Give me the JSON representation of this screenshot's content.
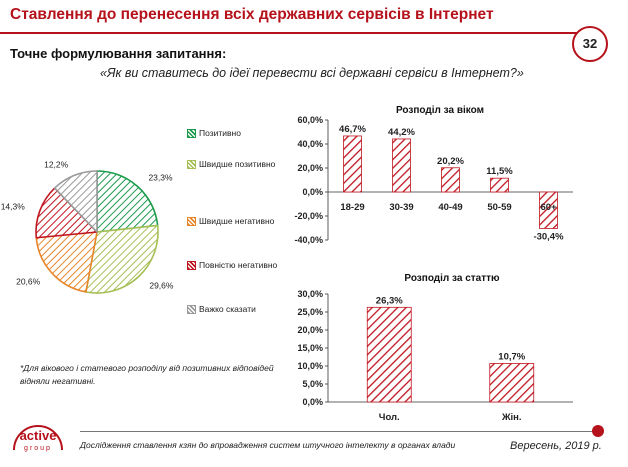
{
  "header": {
    "title": "Ставлення до перенесення всіх державних сервісів в Інтернет",
    "page_number": "32"
  },
  "question": {
    "label": "Точне формулювання запитання:",
    "text": "«Як ви ставитесь до ідеї перевести всі державні сервіси в Інтернет?»"
  },
  "note": "*Для вікового і статевого розподілу від позитивних відповідей відняли негативні.",
  "footer": {
    "text": "Дослідження ставлення  кзян до впровадження систем штучного інтелекту в органах влади",
    "date": "Вересень, 2019 р.",
    "logo_top": "active",
    "logo_bottom": "group"
  },
  "colors": {
    "accent": "#b5121b",
    "pie_positive": "#1a9b4b",
    "pie_rather_positive": "#a6bf55",
    "pie_rather_negative": "#e8862a",
    "pie_negative": "#c0161f",
    "pie_hard_to_say": "#9a9a9a",
    "bar": "#c0161f"
  },
  "chart_data": [
    {
      "type": "pie",
      "categories": [
        "Позитивно",
        "Швидше позитивно",
        "Швидше негативно",
        "Повністю негативно",
        "Важко сказати"
      ],
      "values": [
        23.3,
        29.6,
        20.6,
        14.3,
        12.2
      ],
      "value_labels": [
        "23,3%",
        "29,6%",
        "20,6%",
        "14,3%",
        "12,2%"
      ],
      "legend": [
        "Позитивно",
        "Швидше позитивно",
        "Швидше негативно",
        "Повністю негативно",
        "Важко сказати"
      ],
      "legend_position": "right"
    },
    {
      "type": "bar",
      "title": "Розподіл за віком",
      "categories": [
        "18-29",
        "30-39",
        "40-49",
        "50-59",
        "60+"
      ],
      "values": [
        46.7,
        44.2,
        20.2,
        11.5,
        -30.4
      ],
      "value_labels": [
        "46,7%",
        "44,2%",
        "20,2%",
        "11,5%",
        "-30,4%"
      ],
      "ylim": [
        -40,
        60
      ],
      "yticks": [
        60,
        40,
        20,
        0,
        -20,
        -40
      ],
      "ytick_labels": [
        "60,0%",
        "40,0%",
        "20,0%",
        "0,0%",
        "-20,0%",
        "-40,0%"
      ],
      "grid": false
    },
    {
      "type": "bar",
      "title": "Розподіл за статтю",
      "categories": [
        "Чол.",
        "Жін."
      ],
      "values": [
        26.3,
        10.7
      ],
      "value_labels": [
        "26,3%",
        "10,7%"
      ],
      "ylim": [
        0,
        30
      ],
      "yticks": [
        30,
        25,
        20,
        15,
        10,
        5,
        0
      ],
      "ytick_labels": [
        "30,0%",
        "25,0%",
        "20,0%",
        "15,0%",
        "10,0%",
        "5,0%",
        "0,0%"
      ],
      "grid": false
    }
  ]
}
